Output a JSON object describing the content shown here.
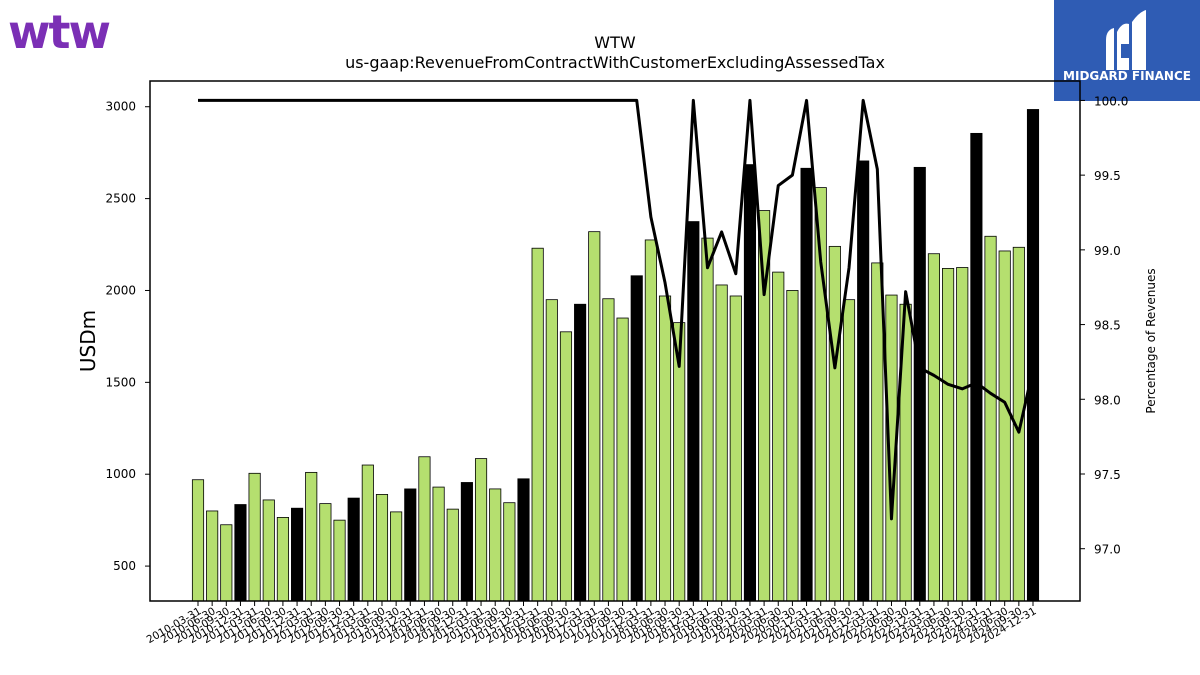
{
  "brand": {
    "left_logo_text": "wtw",
    "left_logo_color": "#7b2fb5",
    "right_logo_text": "MIDGARD FINANCE",
    "right_logo_bg": "#2f5cb4"
  },
  "chart_data": {
    "type": "bar",
    "title": "WTW",
    "subtitle": "us-gaap:RevenueFromContractWithCustomerExcludingAssessedTax",
    "ylabel": "USDm",
    "y2label": "Percentage of Revenues",
    "ylim": [
      310,
      3140
    ],
    "y2lim": [
      96.65,
      100.13
    ],
    "yticks": [
      500,
      1000,
      1500,
      2000,
      2500,
      3000
    ],
    "y2ticks": [
      "97.0",
      "97.5",
      "98.0",
      "98.5",
      "99.0",
      "99.5",
      "100.0"
    ],
    "colors": {
      "quarter": "#b5df6f",
      "annual": "#000000",
      "line": "#000000"
    },
    "categories": [
      "2010-03-31",
      "2010-06-30",
      "2010-09-30",
      "2010-12-31",
      "2011-03-31",
      "2011-06-30",
      "2011-09-30",
      "2011-12-31",
      "2012-03-31",
      "2012-06-30",
      "2012-09-30",
      "2012-12-31",
      "2013-03-31",
      "2013-06-30",
      "2013-09-30",
      "2013-12-31",
      "2014-03-31",
      "2014-06-30",
      "2014-09-30",
      "2014-12-31",
      "2015-03-31",
      "2015-06-30",
      "2015-09-30",
      "2015-12-31",
      "2016-03-31",
      "2016-06-30",
      "2016-09-30",
      "2016-12-31",
      "2017-03-31",
      "2017-06-30",
      "2017-09-30",
      "2017-12-31",
      "2018-03-31",
      "2018-06-30",
      "2018-09-30",
      "2018-12-31",
      "2019-03-31",
      "2019-06-30",
      "2019-09-30",
      "2019-12-31",
      "2020-03-31",
      "2020-06-30",
      "2020-09-30",
      "2020-12-31",
      "2021-03-31",
      "2021-06-30",
      "2021-09-30",
      "2021-12-31",
      "2022-03-31",
      "2022-06-30",
      "2022-09-30",
      "2022-12-31",
      "2023-03-31",
      "2023-06-30",
      "2023-09-30",
      "2023-12-31",
      "2024-03-31",
      "2024-06-30",
      "2024-09-30",
      "2024-12-31"
    ],
    "series": [
      {
        "type": "bar",
        "values": [
          970,
          800,
          725,
          835,
          1005,
          860,
          765,
          815,
          1010,
          840,
          750,
          870,
          1050,
          890,
          795,
          920,
          1095,
          930,
          810,
          955,
          1085,
          920,
          845,
          975,
          2230,
          1950,
          1775,
          1925,
          2320,
          1955,
          1850,
          2080,
          2275,
          1970,
          1825,
          2375,
          2285,
          2030,
          1970,
          2685,
          2435,
          2100,
          2000,
          2665,
          2560,
          2240,
          1950,
          2705,
          2150,
          1975,
          1925,
          2670,
          2200,
          2120,
          2125,
          2855,
          2295,
          2215,
          2235,
          2985
        ],
        "annual": [
          false,
          false,
          false,
          true,
          false,
          false,
          false,
          true,
          false,
          false,
          false,
          true,
          false,
          false,
          false,
          true,
          false,
          false,
          false,
          true,
          false,
          false,
          false,
          true,
          false,
          false,
          false,
          true,
          false,
          false,
          false,
          true,
          false,
          false,
          false,
          true,
          false,
          false,
          false,
          true,
          false,
          false,
          false,
          true,
          false,
          false,
          false,
          true,
          false,
          false,
          false,
          true,
          false,
          false,
          false,
          true,
          false,
          false,
          false,
          true
        ]
      },
      {
        "type": "line",
        "axis": "y2",
        "values": [
          100,
          100,
          100,
          100,
          100,
          100,
          100,
          100,
          100,
          100,
          100,
          100,
          100,
          100,
          100,
          100,
          100,
          100,
          100,
          100,
          100,
          100,
          100,
          100,
          100,
          100,
          100,
          100,
          100,
          100,
          100,
          100,
          99.22,
          98.78,
          98.22,
          100,
          98.88,
          99.12,
          98.84,
          100,
          98.7,
          99.43,
          99.5,
          100,
          98.92,
          98.21,
          98.88,
          100,
          99.54,
          97.2,
          98.72,
          98.21,
          98.16,
          98.1,
          98.07,
          98.11,
          98.04,
          97.98,
          97.78,
          98.2
        ]
      }
    ]
  }
}
